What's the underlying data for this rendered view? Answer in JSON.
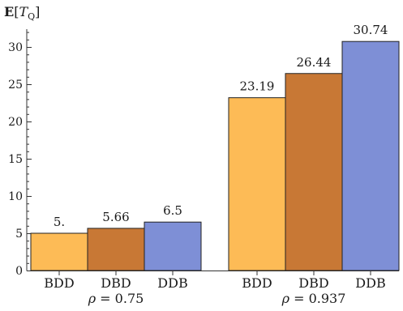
{
  "chart_data": {
    "type": "bar",
    "ylabel": "E[T_Q]",
    "ylabel_parts": {
      "bold": "E",
      "open": "[",
      "var": "T",
      "sub": "Q",
      "close": "]"
    },
    "ylim": [
      0,
      32
    ],
    "yticks": [
      0,
      5,
      10,
      15,
      20,
      25,
      30
    ],
    "grid": false,
    "groups": [
      {
        "label": "ρ = 0.75",
        "label_parts": {
          "var": "ρ",
          "rest": " = 0.75"
        },
        "bars": [
          {
            "category": "BDD",
            "value": 5.0,
            "value_label": "5.",
            "color": "#FDBB56"
          },
          {
            "category": "DBD",
            "value": 5.66,
            "value_label": "5.66",
            "color": "#C87835"
          },
          {
            "category": "DDB",
            "value": 6.5,
            "value_label": "6.5",
            "color": "#7E8FD6"
          }
        ]
      },
      {
        "label": "ρ = 0.937",
        "label_parts": {
          "var": "ρ",
          "rest": " = 0.937"
        },
        "bars": [
          {
            "category": "BDD",
            "value": 23.19,
            "value_label": "23.19",
            "color": "#FDBB56"
          },
          {
            "category": "DBD",
            "value": 26.44,
            "value_label": "26.44",
            "color": "#C87835"
          },
          {
            "category": "DDB",
            "value": 30.74,
            "value_label": "30.74",
            "color": "#7E8FD6"
          }
        ]
      }
    ]
  }
}
